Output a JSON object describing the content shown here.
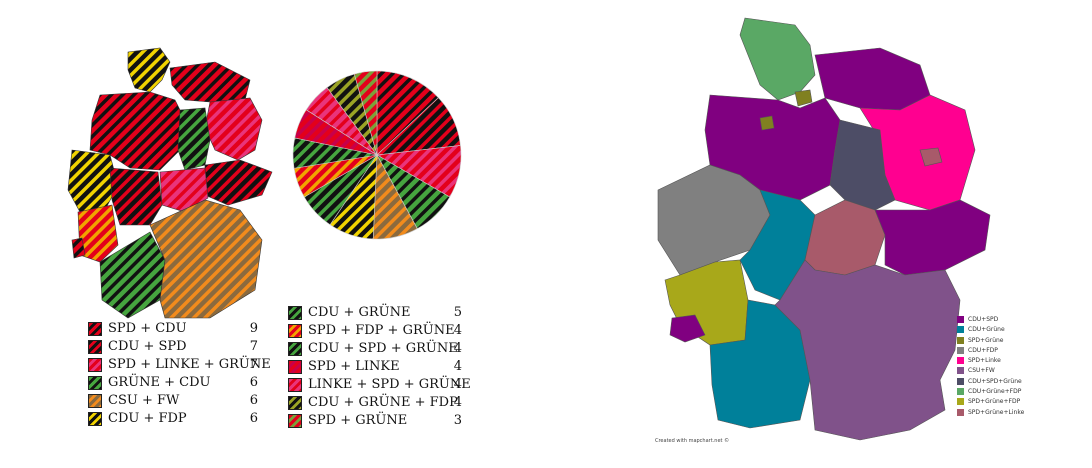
{
  "left_legend": [
    {
      "name": "SPD + CDU",
      "count": "9",
      "c1": "#e3001b",
      "c2": "#111111"
    },
    {
      "name": "CDU + SPD",
      "count": "7",
      "c1": "#111111",
      "c2": "#e3001b"
    },
    {
      "name": "SPD + LINKE + GRÜNE",
      "count": "7",
      "c1": "#e3001b",
      "c2": "#e9347b"
    },
    {
      "name": "GRÜNE + CDU",
      "count": "6",
      "c1": "#46a53f",
      "c2": "#111111"
    },
    {
      "name": "CSU + FW",
      "count": "6",
      "c1": "#8b6a3e",
      "c2": "#f28b1c"
    },
    {
      "name": "CDU + FDP",
      "count": "6",
      "c1": "#111111",
      "c2": "#f1d300"
    },
    {
      "name": "CDU + GRÜNE",
      "count": "5",
      "c1": "#111111",
      "c2": "#46a53f"
    },
    {
      "name": "SPD + FDP + GRÜNE",
      "count": "4",
      "c1": "#e3001b",
      "c2": "#f1a300"
    },
    {
      "name": "CDU + SPD + GRÜNE",
      "count": "4",
      "c1": "#111111",
      "c2": "#46a53f"
    },
    {
      "name": "SPD + LINKE",
      "count": "4",
      "c1": "#e3001b",
      "c2": "#c8004a"
    },
    {
      "name": "LINKE + SPD + GRÜNE",
      "count": "4",
      "c1": "#e9347b",
      "c2": "#e3001b"
    },
    {
      "name": "CDU + GRÜNE + FDP",
      "count": "4",
      "c1": "#111111",
      "c2": "#9aa325"
    },
    {
      "name": "SPD + GRÜNE",
      "count": "3",
      "c1": "#e3001b",
      "c2": "#7aa13a"
    }
  ],
  "right_legend": [
    {
      "name": "CDU+SPD",
      "color": "#800080"
    },
    {
      "name": "CDU+Grüne",
      "color": "#00809a"
    },
    {
      "name": "SPD+Grüne",
      "color": "#808020"
    },
    {
      "name": "CDU+FDP",
      "color": "#808080"
    },
    {
      "name": "SPD+Linke",
      "color": "#ff0090"
    },
    {
      "name": "CSU+FW",
      "color": "#80528a"
    },
    {
      "name": "CDU+SPD+Grüne",
      "color": "#4d4d66"
    },
    {
      "name": "CDU+Grüne+FDP",
      "color": "#5aa865"
    },
    {
      "name": "SPD+Grüne+FDP",
      "color": "#a8a81a"
    },
    {
      "name": "SPD+Grüne+Linke",
      "color": "#a85a6a"
    }
  ],
  "credit": "Created with mapchart.net ©",
  "pie_slices": [
    {
      "name": "SPD + CDU",
      "value": 9
    },
    {
      "name": "CDU + SPD",
      "value": 7
    },
    {
      "name": "SPD + LINKE + GRÜNE",
      "value": 7
    },
    {
      "name": "GRÜNE + CDU",
      "value": 6
    },
    {
      "name": "CSU + FW",
      "value": 6
    },
    {
      "name": "CDU + FDP",
      "value": 6
    },
    {
      "name": "CDU + GRÜNE",
      "value": 5
    },
    {
      "name": "SPD + FDP + GRÜNE",
      "value": 4
    },
    {
      "name": "CDU + SPD + GRÜNE",
      "value": 4
    },
    {
      "name": "SPD + LINKE",
      "value": 4
    },
    {
      "name": "LINKE + SPD + GRÜNE",
      "value": 4
    },
    {
      "name": "CDU + GRÜNE + FDP",
      "value": 4
    },
    {
      "name": "SPD + GRÜNE",
      "value": 3
    }
  ]
}
